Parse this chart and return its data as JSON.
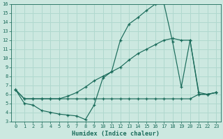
{
  "xlabel": "Humidex (Indice chaleur)",
  "xlim": [
    -0.5,
    23.5
  ],
  "ylim": [
    3,
    16
  ],
  "yticks_max": 16,
  "bg_color": "#cce8e0",
  "grid_color": "#b0d8ce",
  "line_color": "#1a6b5a",
  "line1_x": [
    0,
    1,
    2,
    3,
    4,
    5,
    6,
    7,
    8,
    9,
    10,
    11,
    12,
    13,
    14,
    15,
    16,
    17,
    18,
    19,
    20,
    21,
    22,
    23
  ],
  "line1_y": [
    6.5,
    5.0,
    4.8,
    4.2,
    4.0,
    3.8,
    3.7,
    3.6,
    3.2,
    4.8,
    7.8,
    8.5,
    12.0,
    13.8,
    14.5,
    15.3,
    16.0,
    16.1,
    11.8,
    6.8,
    12.0,
    6.0,
    6.0,
    6.2
  ],
  "line2_x": [
    0,
    1,
    2,
    3,
    4,
    5,
    6,
    7,
    8,
    9,
    10,
    11,
    12,
    13,
    14,
    15,
    16,
    17,
    18,
    19,
    20,
    21,
    22,
    23
  ],
  "line2_y": [
    6.5,
    5.5,
    5.5,
    5.5,
    5.5,
    5.5,
    5.8,
    6.2,
    6.8,
    7.5,
    8.0,
    8.5,
    9.0,
    9.8,
    10.5,
    11.0,
    11.5,
    12.0,
    12.2,
    12.0,
    12.0,
    6.2,
    6.0,
    6.2
  ],
  "line3_x": [
    0,
    1,
    2,
    3,
    4,
    5,
    6,
    7,
    8,
    9,
    10,
    11,
    12,
    13,
    14,
    15,
    16,
    17,
    18,
    19,
    20,
    21,
    22,
    23
  ],
  "line3_y": [
    6.5,
    5.5,
    5.5,
    5.5,
    5.5,
    5.5,
    5.5,
    5.5,
    5.5,
    5.5,
    5.5,
    5.5,
    5.5,
    5.5,
    5.5,
    5.5,
    5.5,
    5.5,
    5.5,
    5.5,
    5.5,
    6.0,
    6.0,
    6.2
  ]
}
